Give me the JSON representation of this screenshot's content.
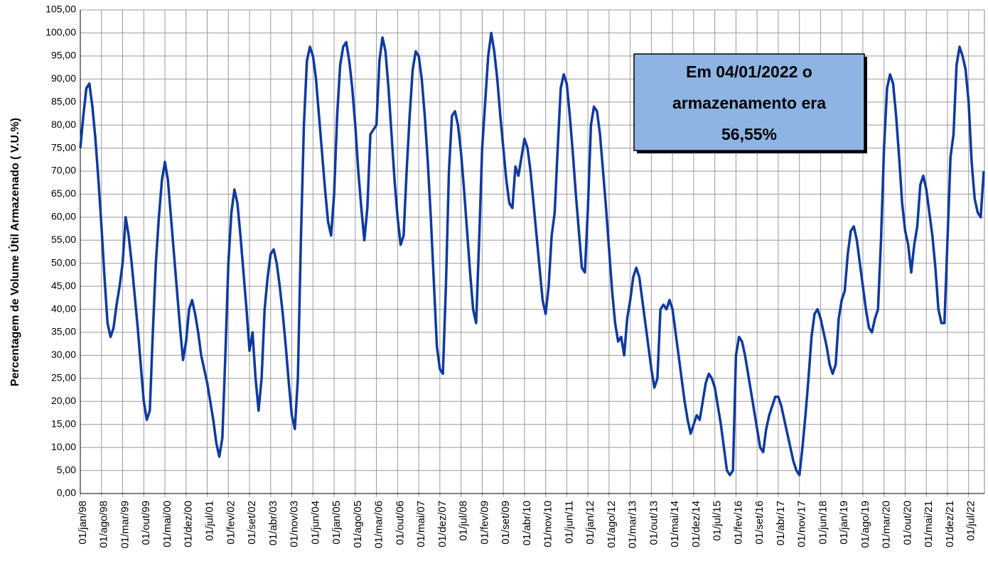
{
  "chart_data": {
    "type": "line",
    "y_label": "Percentagem de Volume Útil Armazenado ( V.U.%)",
    "annotation": [
      "Em 04/01/2022 o",
      "armazenamento era",
      "56,55%"
    ],
    "color": "#0d3a9e",
    "grid": true,
    "ylim": [
      0,
      105
    ],
    "yticks": [
      {
        "value": 0,
        "label": "0,00"
      },
      {
        "value": 5,
        "label": "5,00"
      },
      {
        "value": 10,
        "label": "10,00"
      },
      {
        "value": 15,
        "label": "15,00"
      },
      {
        "value": 20,
        "label": "20,00"
      },
      {
        "value": 25,
        "label": "25,00"
      },
      {
        "value": 30,
        "label": "30,00"
      },
      {
        "value": 35,
        "label": "35,00"
      },
      {
        "value": 40,
        "label": "40,00"
      },
      {
        "value": 45,
        "label": "45,00"
      },
      {
        "value": 50,
        "label": "50,00"
      },
      {
        "value": 55,
        "label": "55,00"
      },
      {
        "value": 60,
        "label": "60,00"
      },
      {
        "value": 65,
        "label": "65,00"
      },
      {
        "value": 70,
        "label": "70,00"
      },
      {
        "value": 75,
        "label": "75,00"
      },
      {
        "value": 80,
        "label": "80,00"
      },
      {
        "value": 85,
        "label": "85,00"
      },
      {
        "value": 90,
        "label": "90,00"
      },
      {
        "value": 95,
        "label": "95,00"
      },
      {
        "value": 100,
        "label": "100,00"
      },
      {
        "value": 105,
        "label": "105,00"
      }
    ],
    "categories": [
      "01/jan/98",
      null,
      null,
      null,
      null,
      null,
      null,
      "01/ago/98",
      null,
      null,
      null,
      null,
      null,
      null,
      "01/mar/99",
      null,
      null,
      null,
      null,
      null,
      null,
      "01/out/99",
      null,
      null,
      null,
      null,
      null,
      null,
      "01/mai/00",
      null,
      null,
      null,
      null,
      null,
      null,
      "01/dez/00",
      null,
      null,
      null,
      null,
      null,
      null,
      "01/jul/01",
      null,
      null,
      null,
      null,
      null,
      null,
      "01/fev/02",
      null,
      null,
      null,
      null,
      null,
      null,
      "01/set/02",
      null,
      null,
      null,
      null,
      null,
      null,
      "01/abr/03",
      null,
      null,
      null,
      null,
      null,
      null,
      "01/nov/03",
      null,
      null,
      null,
      null,
      null,
      null,
      "01/jun/04",
      null,
      null,
      null,
      null,
      null,
      null,
      "01/jan/05",
      null,
      null,
      null,
      null,
      null,
      null,
      "01/ago/05",
      null,
      null,
      null,
      null,
      null,
      null,
      "01/mar/06",
      null,
      null,
      null,
      null,
      null,
      null,
      "01/out/06",
      null,
      null,
      null,
      null,
      null,
      null,
      "01/mai/07",
      null,
      null,
      null,
      null,
      null,
      null,
      "01/dez/07",
      null,
      null,
      null,
      null,
      null,
      null,
      "01/jul/08",
      null,
      null,
      null,
      null,
      null,
      null,
      "01/fev/09",
      null,
      null,
      null,
      null,
      null,
      null,
      "01/set/09",
      null,
      null,
      null,
      null,
      null,
      null,
      "01/abr/10",
      null,
      null,
      null,
      null,
      null,
      null,
      "01/nov/10",
      null,
      null,
      null,
      null,
      null,
      null,
      "01/jun/11",
      null,
      null,
      null,
      null,
      null,
      null,
      "01/jan/12",
      null,
      null,
      null,
      null,
      null,
      null,
      "01/ago/12",
      null,
      null,
      null,
      null,
      null,
      null,
      "01/mar/13",
      null,
      null,
      null,
      null,
      null,
      null,
      "01/out/13",
      null,
      null,
      null,
      null,
      null,
      null,
      "01/mai/14",
      null,
      null,
      null,
      null,
      null,
      null,
      "01/dez/14",
      null,
      null,
      null,
      null,
      null,
      null,
      "01/jul/15",
      null,
      null,
      null,
      null,
      null,
      null,
      "01/fev/16",
      null,
      null,
      null,
      null,
      null,
      null,
      "01/set/16",
      null,
      null,
      null,
      null,
      null,
      null,
      "01/abr/17",
      null,
      null,
      null,
      null,
      null,
      null,
      "01/nov/17",
      null,
      null,
      null,
      null,
      null,
      null,
      "01/jun/18",
      null,
      null,
      null,
      null,
      null,
      null,
      "01/jan/19",
      null,
      null,
      null,
      null,
      null,
      null,
      "01/ago/19",
      null,
      null,
      null,
      null,
      null,
      null,
      "01/mar/20",
      null,
      null,
      null,
      null,
      null,
      null,
      "01/out/20",
      null,
      null,
      null,
      null,
      null,
      null,
      "01/mai/21",
      null,
      null,
      null,
      null,
      null,
      null,
      "01/dez/21",
      null,
      null,
      null,
      null,
      null,
      null,
      "01/jul/22",
      null,
      null,
      null,
      null,
      null
    ],
    "values": [
      75,
      82,
      88,
      89,
      84,
      77,
      68,
      58,
      47,
      37,
      34,
      36,
      41,
      45,
      50,
      60,
      56,
      50,
      43,
      36,
      28,
      20,
      16,
      18,
      35,
      50,
      60,
      68,
      72,
      68,
      60,
      52,
      44,
      36,
      29,
      33,
      40,
      42,
      39,
      35,
      30,
      27,
      24,
      20,
      16,
      11,
      8,
      12,
      30,
      50,
      61,
      66,
      63,
      56,
      48,
      40,
      31,
      35,
      25,
      18,
      25,
      40,
      47,
      52,
      53,
      50,
      45,
      39,
      32,
      24,
      17,
      14,
      25,
      55,
      80,
      94,
      97,
      95,
      90,
      82,
      74,
      66,
      59,
      56,
      65,
      82,
      93,
      97,
      98,
      94,
      88,
      80,
      70,
      62,
      55,
      62,
      78,
      79,
      80,
      94,
      99,
      96,
      88,
      78,
      68,
      60,
      54,
      56,
      70,
      82,
      92,
      96,
      95,
      90,
      82,
      72,
      60,
      46,
      32,
      27,
      26,
      45,
      70,
      82,
      83,
      80,
      74,
      66,
      57,
      48,
      40,
      37,
      55,
      75,
      85,
      95,
      100,
      96,
      90,
      82,
      75,
      68,
      63,
      62,
      71,
      69,
      73,
      77,
      75,
      70,
      63,
      56,
      49,
      42,
      39,
      45,
      56,
      61,
      75,
      88,
      91,
      89,
      82,
      74,
      65,
      57,
      49,
      48,
      62,
      80,
      84,
      83,
      78,
      70,
      62,
      53,
      44,
      37,
      33,
      34,
      30,
      38,
      42,
      47,
      49,
      47,
      42,
      37,
      32,
      27,
      23,
      25,
      40,
      41,
      40,
      42,
      40,
      35,
      30,
      25,
      20,
      16,
      13,
      15,
      17,
      16,
      20,
      24,
      26,
      25,
      23,
      19,
      15,
      10,
      5,
      4,
      5,
      30,
      34,
      33,
      30,
      26,
      22,
      18,
      14,
      10,
      9,
      14,
      17,
      19,
      21,
      21,
      19,
      16,
      13,
      10,
      7,
      5,
      4,
      10,
      17,
      25,
      34,
      39,
      40,
      38,
      35,
      32,
      28,
      26,
      28,
      38,
      42,
      44,
      52,
      57,
      58,
      55,
      50,
      45,
      40,
      36,
      35,
      38,
      40,
      55,
      75,
      88,
      91,
      89,
      82,
      73,
      63,
      57,
      54,
      48,
      54,
      58,
      67,
      69,
      66,
      61,
      56,
      49,
      40,
      37,
      37,
      55,
      73,
      78,
      93,
      97,
      95,
      92,
      85,
      72,
      64,
      61,
      60,
      70
    ]
  }
}
